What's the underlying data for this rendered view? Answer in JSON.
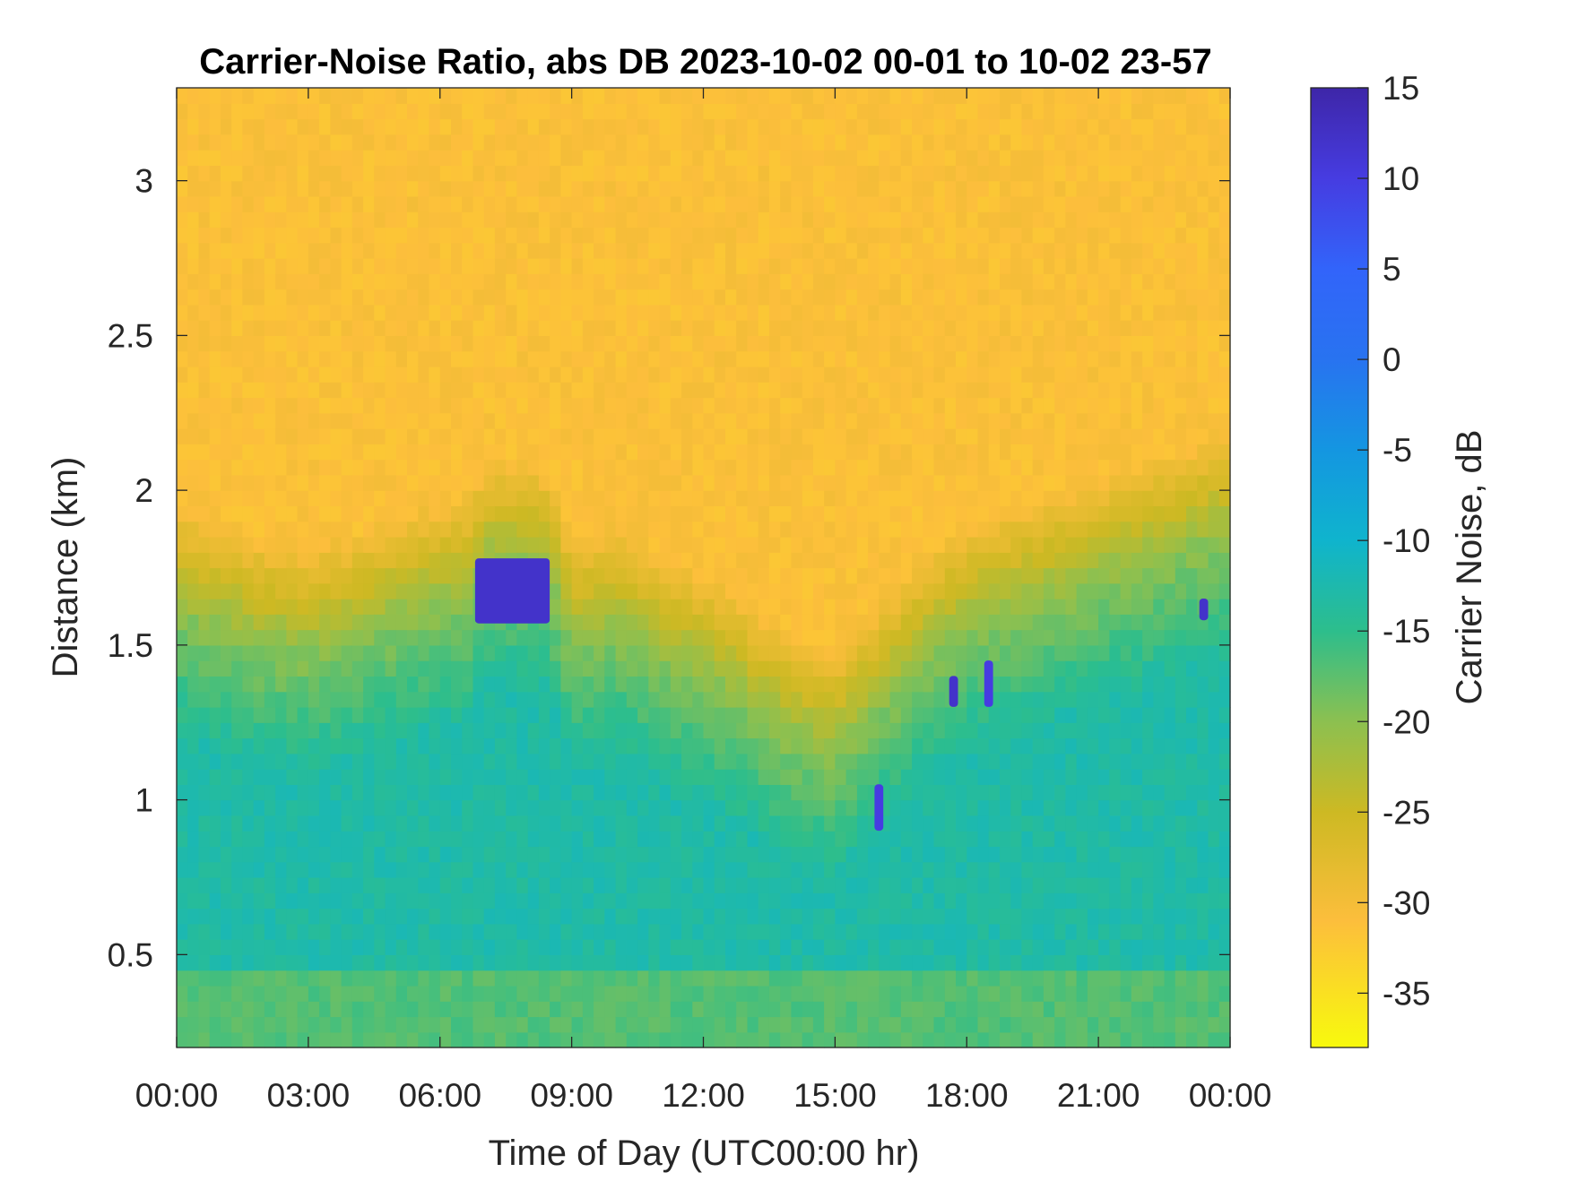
{
  "chart_data": {
    "type": "heatmap",
    "title": "Carrier-Noise Ratio, abs DB 2023-10-02 00-01 to 10-02 23-57",
    "xlabel": "Time of Day (UTC00:00 hr)",
    "ylabel": "Distance (km)",
    "x_tick_labels": [
      "00:00",
      "03:00",
      "06:00",
      "09:00",
      "12:00",
      "15:00",
      "18:00",
      "21:00",
      "00:00"
    ],
    "x_tick_hours": [
      0,
      3,
      6,
      9,
      12,
      15,
      18,
      21,
      24
    ],
    "xlim_hours": [
      0,
      24
    ],
    "y_ticks": [
      0.5,
      1,
      1.5,
      2,
      2.5,
      3
    ],
    "y_tick_labels": [
      "0.5",
      "1",
      "1.5",
      "2",
      "2.5",
      "3"
    ],
    "ylim_km": [
      0.2,
      3.3
    ],
    "colorbar": {
      "label": "Carrier Noise, dB",
      "range": [
        -38,
        15
      ],
      "ticks": [
        15,
        10,
        5,
        0,
        -5,
        -10,
        -15,
        -20,
        -25,
        -30,
        -35
      ],
      "tick_labels": [
        "15",
        "10",
        "5",
        "0",
        "-5",
        "-10",
        "-15",
        "-20",
        "-25",
        "-30",
        "-35"
      ],
      "colormap": "parula-reversed"
    },
    "layer_boundary_km": {
      "hours": [
        0,
        1,
        2,
        3,
        4,
        5,
        6,
        6.7,
        7,
        8,
        8.5,
        9,
        10,
        11,
        12,
        13,
        14,
        15,
        16,
        17,
        18,
        19,
        20,
        21,
        22,
        23,
        24
      ],
      "km": [
        1.6,
        1.55,
        1.5,
        1.48,
        1.52,
        1.58,
        1.62,
        1.65,
        1.75,
        1.75,
        1.72,
        1.5,
        1.55,
        1.45,
        1.4,
        1.3,
        1.2,
        1.15,
        1.3,
        1.45,
        1.55,
        1.6,
        1.65,
        1.7,
        1.75,
        1.8,
        1.85
      ]
    },
    "background_noise_db": -31,
    "near_surface_db": -16,
    "notable_features": [
      {
        "hours": [
          6.8,
          8.5
        ],
        "km": [
          1.57,
          1.78
        ],
        "db": 12
      },
      {
        "hours": [
          15.9,
          16.1
        ],
        "km": [
          0.9,
          1.05
        ],
        "db": 10
      },
      {
        "hours": [
          17.6,
          17.8
        ],
        "km": [
          1.3,
          1.4
        ],
        "db": 12
      },
      {
        "hours": [
          18.4,
          18.6
        ],
        "km": [
          1.3,
          1.45
        ],
        "db": 10
      },
      {
        "hours": [
          23.3,
          23.5
        ],
        "km": [
          1.58,
          1.65
        ],
        "db": 12
      }
    ]
  }
}
